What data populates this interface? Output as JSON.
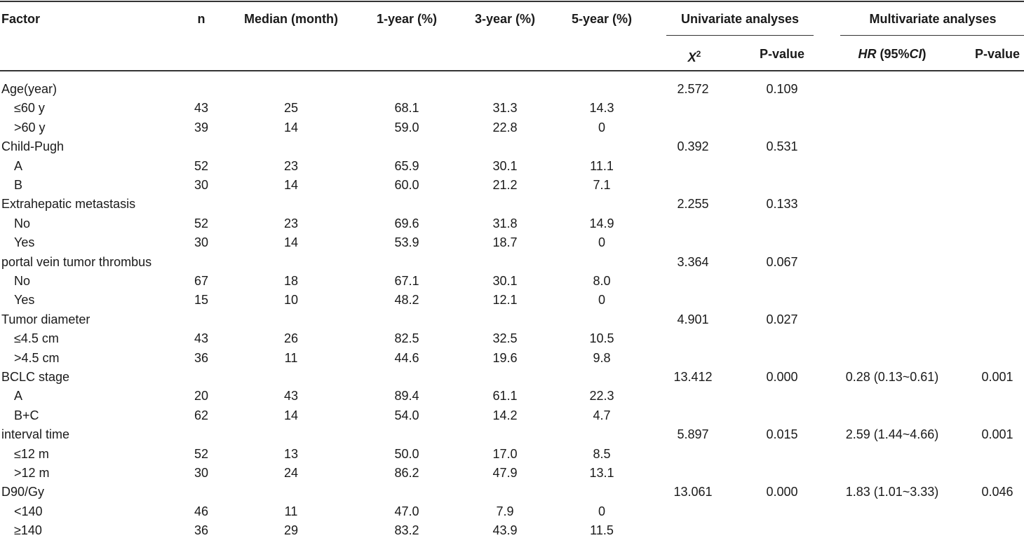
{
  "headers": {
    "factor": "Factor",
    "n": "n",
    "median": "Median (month)",
    "y1": "1-year (%)",
    "y3": "3-year (%)",
    "y5": "5-year (%)",
    "univariate": "Univariate analyses",
    "multivariate": "Multivariate analyses",
    "x2_base": "X",
    "x2_sup": "2",
    "p_uni": "P-value",
    "hr": "HR",
    "ci_open": " (95%",
    "ci": "CI",
    "ci_close": ")",
    "p_multi": "P-value"
  },
  "rows": [
    {
      "label": "Age(year)",
      "type": "group",
      "x2": "2.572",
      "p_uni": "0.109",
      "hr": "",
      "p_multi": ""
    },
    {
      "label": "≤60 y",
      "type": "sub",
      "n": "43",
      "median": "25",
      "y1": "68.1",
      "y3": "31.3",
      "y5": "14.3"
    },
    {
      "label": ">60 y",
      "type": "sub",
      "n": "39",
      "median": "14",
      "y1": "59.0",
      "y3": "22.8",
      "y5": "0"
    },
    {
      "label": "Child-Pugh",
      "type": "group",
      "x2": "0.392",
      "p_uni": "0.531",
      "hr": "",
      "p_multi": ""
    },
    {
      "label": "A",
      "type": "sub",
      "n": "52",
      "median": "23",
      "y1": "65.9",
      "y3": "30.1",
      "y5": "11.1"
    },
    {
      "label": "B",
      "type": "sub",
      "n": "30",
      "median": "14",
      "y1": "60.0",
      "y3": "21.2",
      "y5": "7.1"
    },
    {
      "label": "Extrahepatic metastasis",
      "type": "group",
      "x2": "2.255",
      "p_uni": "0.133",
      "hr": "",
      "p_multi": ""
    },
    {
      "label": "No",
      "type": "sub",
      "n": "52",
      "median": "23",
      "y1": "69.6",
      "y3": "31.8",
      "y5": "14.9"
    },
    {
      "label": "Yes",
      "type": "sub",
      "n": "30",
      "median": "14",
      "y1": "53.9",
      "y3": "18.7",
      "y5": "0"
    },
    {
      "label": "portal vein tumor thrombus",
      "type": "group",
      "x2": "3.364",
      "p_uni": "0.067",
      "hr": "",
      "p_multi": ""
    },
    {
      "label": "No",
      "type": "sub",
      "n": "67",
      "median": "18",
      "y1": "67.1",
      "y3": "30.1",
      "y5": "8.0"
    },
    {
      "label": "Yes",
      "type": "sub",
      "n": "15",
      "median": "10",
      "y1": "48.2",
      "y3": "12.1",
      "y5": "0"
    },
    {
      "label": "Tumor diameter",
      "type": "group",
      "x2": "4.901",
      "p_uni": "0.027",
      "hr": "",
      "p_multi": ""
    },
    {
      "label": "≤4.5 cm",
      "type": "sub",
      "n": "43",
      "median": "26",
      "y1": "82.5",
      "y3": "32.5",
      "y5": "10.5"
    },
    {
      "label": ">4.5 cm",
      "type": "sub",
      "n": "36",
      "median": "11",
      "y1": "44.6",
      "y3": "19.6",
      "y5": "9.8"
    },
    {
      "label": "BCLC stage",
      "type": "group",
      "x2": "13.412",
      "p_uni": "0.000",
      "hr": "0.28 (0.13~0.61)",
      "p_multi": "0.001"
    },
    {
      "label": "A",
      "type": "sub",
      "n": "20",
      "median": "43",
      "y1": "89.4",
      "y3": "61.1",
      "y5": "22.3"
    },
    {
      "label": "B+C",
      "type": "sub",
      "n": "62",
      "median": "14",
      "y1": "54.0",
      "y3": "14.2",
      "y5": "4.7"
    },
    {
      "label": "interval time",
      "type": "group",
      "x2": "5.897",
      "p_uni": "0.015",
      "hr": "2.59 (1.44~4.66)",
      "p_multi": "0.001"
    },
    {
      "label": "≤12 m",
      "type": "sub",
      "n": "52",
      "median": "13",
      "y1": "50.0",
      "y3": "17.0",
      "y5": "8.5"
    },
    {
      "label": ">12 m",
      "type": "sub",
      "n": "30",
      "median": "24",
      "y1": "86.2",
      "y3": "47.9",
      "y5": "13.1"
    },
    {
      "label": "D90/Gy",
      "type": "group",
      "x2": "13.061",
      "p_uni": "0.000",
      "hr": "1.83 (1.01~3.33)",
      "p_multi": "0.046"
    },
    {
      "label": "<140",
      "type": "sub",
      "n": "46",
      "median": "11",
      "y1": "47.0",
      "y3": "7.9",
      "y5": "0"
    },
    {
      "label": "≥140",
      "type": "sub",
      "n": "36",
      "median": "29",
      "y1": "83.2",
      "y3": "43.9",
      "y5": "11.5"
    }
  ]
}
